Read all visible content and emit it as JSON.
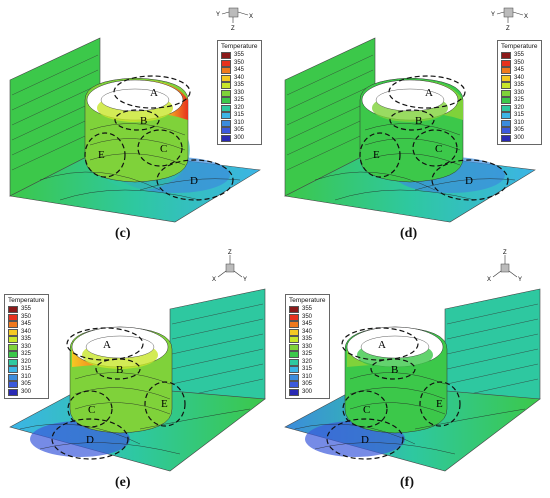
{
  "panels": [
    {
      "caption": "(c)",
      "legend_title": "Temperature",
      "region_labels": [
        "A",
        "B",
        "C",
        "D",
        "E"
      ],
      "axes": [
        "Y",
        "X",
        "Z"
      ]
    },
    {
      "caption": "(d)",
      "legend_title": "Temperature",
      "region_labels": [
        "A",
        "B",
        "C",
        "D",
        "E"
      ],
      "axes": [
        "Y",
        "X",
        "Z"
      ]
    },
    {
      "caption": "(e)",
      "legend_title": "Temperature",
      "region_labels": [
        "A",
        "B",
        "C",
        "D",
        "E"
      ],
      "axes": [
        "Z",
        "X",
        "Y"
      ]
    },
    {
      "caption": "(f)",
      "legend_title": "Temperature",
      "region_labels": [
        "A",
        "B",
        "C",
        "D",
        "E"
      ],
      "axes": [
        "Z",
        "X",
        "Y"
      ]
    }
  ],
  "legend": {
    "levels": [
      "355",
      "350",
      "345",
      "340",
      "335",
      "330",
      "325",
      "320",
      "315",
      "310",
      "305",
      "300"
    ],
    "colors": [
      "#8b1a1a",
      "#e8321e",
      "#f07a1e",
      "#f5c823",
      "#c8e62a",
      "#7fd23a",
      "#3cc84a",
      "#2ec8a0",
      "#3cb4e6",
      "#3c8cdc",
      "#3c5adc",
      "#2a2ab4"
    ]
  }
}
